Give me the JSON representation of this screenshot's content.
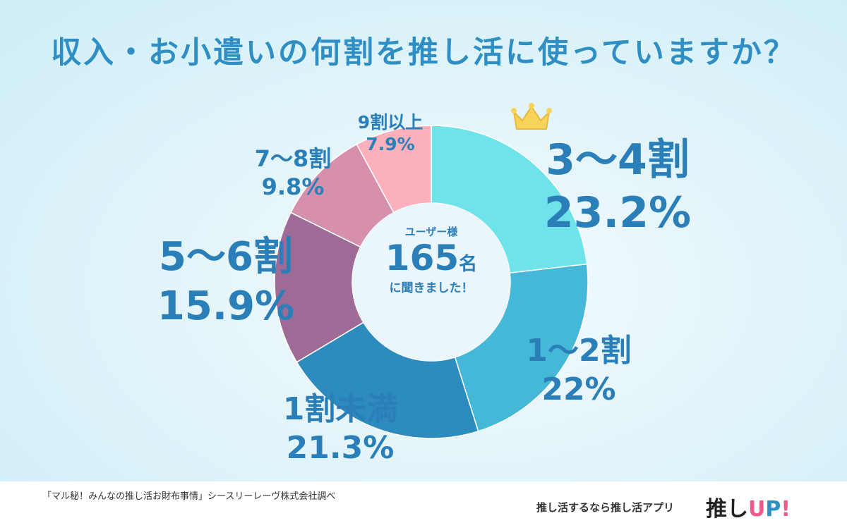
{
  "title": "収入・お小遣いの何割を推し活に使っていますか？",
  "center": {
    "line1": "ユーザー様",
    "count": "165",
    "count_unit": "名",
    "line3": "に聞きました！"
  },
  "chart_data": {
    "type": "pie",
    "title": "収入・お小遣いの何割を推し活に使っていますか？",
    "slices": [
      {
        "label": "3〜4割",
        "value": 23.2,
        "display": "23.2%",
        "color": "#6ee3ea"
      },
      {
        "label": "1〜2割",
        "value": 22,
        "display": "22%",
        "color": "#45b8d8"
      },
      {
        "label": "1割未満",
        "value": 21.3,
        "display": "21.3%",
        "color": "#2d8bbd"
      },
      {
        "label": "5〜6割",
        "value": 15.9,
        "display": "15.9%",
        "color": "#9e6b96"
      },
      {
        "label": "7〜8割",
        "value": 9.8,
        "display": "9.8%",
        "color": "#d690ac"
      },
      {
        "label": "9割以上",
        "value": 7.9,
        "display": "7.9%",
        "color": "#fbb0bb"
      }
    ]
  },
  "footer": {
    "source": "「マル秘！みんなの推し活お財布事情」シースリーレーヴ株式会社調べ",
    "promo": "推し活するなら推し活アプリ",
    "logo_text": "推し",
    "logo_u": "U",
    "logo_p": "P",
    "logo_bang": "!"
  },
  "icons": {
    "crown": "crown-icon"
  }
}
